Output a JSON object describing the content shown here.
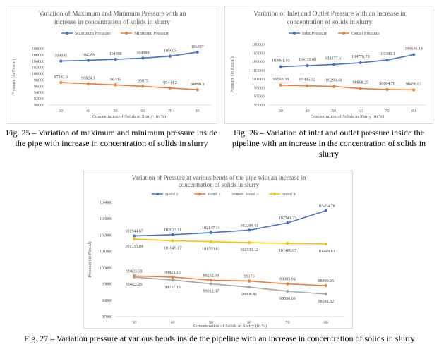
{
  "chart_data": [
    {
      "type": "line",
      "title": "Variation of Maximum and Minimum Pressure with an increase in concentration of solids in slurry",
      "title_lines": [
        "Variation of Maximum and Minimum Pressure with an",
        "increase in concentration of solids in slurry"
      ],
      "xlabel": "Concentration of Solids in Slurry (in %)",
      "ylabel": "Pressure (in Pascal)",
      "categories": [
        "30",
        "40",
        "50",
        "60",
        "70",
        "80"
      ],
      "y_ticks": [
        "90000",
        "92000",
        "94000",
        "96000",
        "98000",
        "100000",
        "102000",
        "104000",
        "106000",
        "108000"
      ],
      "ylim": [
        90000,
        108000
      ],
      "grid": false,
      "legend_position": "top",
      "series": [
        {
          "name": "Maximum Pressure",
          "color": "#4472C4",
          "values": [
            104045,
            104289,
            104598,
            104989,
            105605,
            106897
          ],
          "labels": [
            "104045",
            "104289",
            "104598",
            "104989",
            "105605",
            "106897"
          ]
        },
        {
          "name": "Minimum Pressure",
          "color": "#ED7D31",
          "values": [
            97182.6,
            96824.1,
            96445,
            95975,
            95444.2,
            94899.3
          ],
          "labels": [
            "97182.6",
            "96824.1",
            "96445",
            "95975",
            "95444.2",
            "94899.3"
          ]
        }
      ]
    },
    {
      "type": "line",
      "title": "Variation of Inlet and Outlet Pressure with an increase in concentration of solids in slurry",
      "title_lines": [
        "Variation of Inlet and Outlet Pressure with an increase in",
        "concentration of solids in slurry"
      ],
      "xlabel": "Concentration of Solids in Slurry (in %)",
      "ylabel": "Pressure (in Pascal)",
      "categories": [
        "30",
        "40",
        "50",
        "60",
        "70",
        "80"
      ],
      "y_ticks": [
        "95000",
        "97000",
        "99000",
        "101000",
        "103000",
        "105000",
        "107000",
        "109000"
      ],
      "ylim": [
        95000,
        109000
      ],
      "grid": false,
      "legend_position": "top",
      "series": [
        {
          "name": "Inlet Pressure",
          "color": "#4472C4",
          "values": [
            103861.93,
            104110.08,
            104377.61,
            104776.79,
            105385.1,
            106636.14
          ],
          "labels": [
            "103861.93",
            "104110.08",
            "104377.61",
            "104776.79",
            "105385.1",
            "106636.14"
          ]
        },
        {
          "name": "Outlet Pressure",
          "color": "#ED7D31",
          "values": [
            99593.38,
            99445.32,
            99298.48,
            98808.25,
            98604.76,
            98498.03
          ],
          "labels": [
            "99593.38",
            "99445.32",
            "99298.48",
            "98808.25",
            "98604.76",
            "98498.03"
          ]
        }
      ]
    },
    {
      "type": "line",
      "title": "Variation of Pressure at various bends of the pipe with an increase in concentration of solids in slurry",
      "title_lines": [
        "Variation of Pressure at various bends of the pipe with an increase in",
        "concentration of solids in slurry"
      ],
      "xlabel": "Concentration of Solids in Slurry (in %)",
      "ylabel": "Pressure (in Pascal)",
      "categories": [
        "30",
        "40",
        "50",
        "60",
        "70",
        "80"
      ],
      "y_ticks": [
        "97000",
        "98000",
        "99000",
        "100000",
        "101000",
        "102000",
        "103000",
        "104000"
      ],
      "ylim": [
        97000,
        104000
      ],
      "grid": false,
      "legend_position": "top",
      "series": [
        {
          "name": "Bend 1",
          "color": "#4472C4",
          "values": [
            101944.67,
            102023.11,
            102147.14,
            102299.41,
            102741.23,
            103494.78
          ],
          "labels": [
            "101944.67",
            "102023.11",
            "102147.14",
            "102299.41",
            "102741.23",
            "103494.78"
          ]
        },
        {
          "name": "Bend 2",
          "color": "#ED7D31",
          "values": [
            99493.58,
            99423.13,
            99232.38,
            99176,
            99003.94,
            98899.65
          ],
          "labels": [
            "99493.58",
            "99423.13",
            "99232.38",
            "99176",
            "99003.94",
            "98899.65"
          ]
        },
        {
          "name": "Bend 3",
          "color": "#A5A5A5",
          "values": [
            99422.26,
            99237.16,
            99012.07,
            98806.81,
            98556.09,
            98381.32
          ],
          "labels": [
            "99422.26",
            "99237.16",
            "99012.07",
            "98806.81",
            "98556.09",
            "98381.32"
          ]
        },
        {
          "name": "Bend 4",
          "color": "#FFC000",
          "values": [
            101755.04,
            101649.17,
            101593.81,
            101533.12,
            101489.07,
            101449.81
          ],
          "labels": [
            "101755.04",
            "101649.17",
            "101593.81",
            "101533.12",
            "101489.07",
            "101449.81"
          ]
        }
      ]
    }
  ],
  "captions": {
    "fig25_lines": [
      "Fig. 25 – Variation of maximum and minimum pressure inside",
      "the pipe with increase in concentration of solids in slurry"
    ],
    "fig26_lines": [
      "Fig. 26 – Variation of inlet and outlet pressure inside the",
      "pipeline with an increase in the concentration of solids in",
      "slurry"
    ],
    "fig27": "Fig. 27 – Variation pressure at various bends inside the pipeline with an increase in concentration of solids in slurry"
  }
}
